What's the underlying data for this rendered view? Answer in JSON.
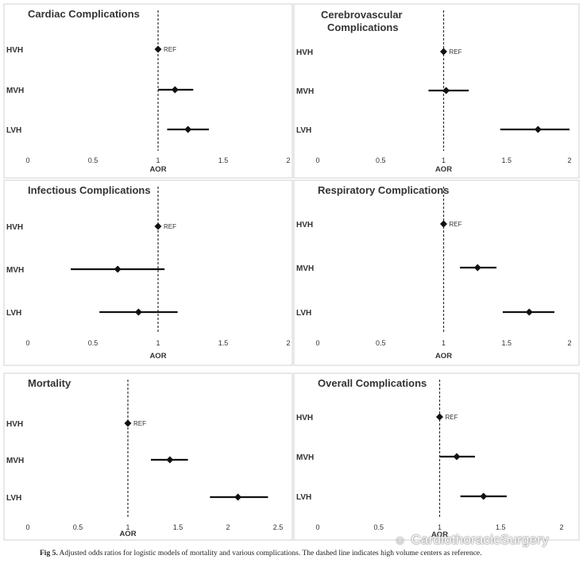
{
  "figure": {
    "caption_label": "Fig 5.",
    "caption_text": " Adjusted odds ratios for logistic models of mortality and various complications. The dashed line indicates high volume centers as reference.",
    "watermark": "CardiothoracicSurgery",
    "watermark_icon": "wechat-icon"
  },
  "chart_data": [
    {
      "type": "forest",
      "title": "Cardiac Complications",
      "xlabel": "AOR",
      "xlim": [
        0,
        2
      ],
      "xticks": [
        0,
        0.5,
        1,
        1.5,
        2
      ],
      "xtick_labels": [
        "0",
        "0.5",
        "1",
        "1.5",
        "2"
      ],
      "reference": 1,
      "rows": [
        {
          "label": "HVH",
          "value": 1.0,
          "low": 1.0,
          "high": 1.0,
          "ref_label": "REF"
        },
        {
          "label": "MVH",
          "value": 1.13,
          "low": 1.0,
          "high": 1.27
        },
        {
          "label": "LVH",
          "value": 1.23,
          "low": 1.07,
          "high": 1.39
        }
      ]
    },
    {
      "type": "forest",
      "title": "Cerebrovascular Complications",
      "xlabel": "AOR",
      "xlim": [
        0,
        2
      ],
      "xticks": [
        0,
        0.5,
        1,
        1.5,
        2
      ],
      "xtick_labels": [
        "0",
        "0.5",
        "1",
        "1.5",
        "2"
      ],
      "reference": 1,
      "rows": [
        {
          "label": "HVH",
          "value": 1.0,
          "low": 1.0,
          "high": 1.0,
          "ref_label": "REF"
        },
        {
          "label": "MVH",
          "value": 1.02,
          "low": 0.88,
          "high": 1.2
        },
        {
          "label": "LVH",
          "value": 1.75,
          "low": 1.45,
          "high": 2.0
        }
      ]
    },
    {
      "type": "forest",
      "title": "Infectious Complications",
      "xlabel": "AOR",
      "xlim": [
        0,
        2
      ],
      "xticks": [
        0,
        0.5,
        1,
        1.5,
        2
      ],
      "xtick_labels": [
        "0",
        "0.5",
        "1",
        "1.5",
        "2"
      ],
      "reference": 1,
      "rows": [
        {
          "label": "HVH",
          "value": 1.0,
          "low": 1.0,
          "high": 1.0,
          "ref_label": "REF"
        },
        {
          "label": "MVH",
          "value": 0.69,
          "low": 0.33,
          "high": 1.05
        },
        {
          "label": "LVH",
          "value": 0.85,
          "low": 0.55,
          "high": 1.15
        }
      ]
    },
    {
      "type": "forest",
      "title": "Respiratory Complications",
      "xlabel": "AOR",
      "xlim": [
        0,
        2
      ],
      "xticks": [
        0,
        0.5,
        1,
        1.5,
        2
      ],
      "xtick_labels": [
        "0",
        "0.5",
        "1",
        "1.5",
        "2"
      ],
      "reference": 1,
      "rows": [
        {
          "label": "HVH",
          "value": 1.0,
          "low": 1.0,
          "high": 1.0,
          "ref_label": "REF"
        },
        {
          "label": "MVH",
          "value": 1.27,
          "low": 1.13,
          "high": 1.42
        },
        {
          "label": "LVH",
          "value": 1.68,
          "low": 1.47,
          "high": 1.88
        }
      ]
    },
    {
      "type": "forest",
      "title": "Mortality",
      "xlabel": "AOR",
      "xlim": [
        0,
        2.5
      ],
      "xticks": [
        0,
        0.5,
        1,
        1.5,
        2,
        2.5
      ],
      "xtick_labels": [
        "0",
        "0.5",
        "1",
        "1.5",
        "2",
        "2.5"
      ],
      "reference": 1,
      "rows": [
        {
          "label": "HVH",
          "value": 1.0,
          "low": 1.0,
          "high": 1.0,
          "ref_label": "REF"
        },
        {
          "label": "MVH",
          "value": 1.42,
          "low": 1.23,
          "high": 1.6
        },
        {
          "label": "LVH",
          "value": 2.1,
          "low": 1.82,
          "high": 2.4
        }
      ]
    },
    {
      "type": "forest",
      "title": "Overall Complications",
      "xlabel": "AOR",
      "xlim": [
        0,
        2
      ],
      "xticks": [
        0,
        0.5,
        1,
        1.5,
        2
      ],
      "xtick_labels": [
        "0",
        "0.5",
        "1",
        "1.5",
        "2"
      ],
      "reference": 1,
      "rows": [
        {
          "label": "HVH",
          "value": 1.0,
          "low": 1.0,
          "high": 1.0,
          "ref_label": "REF"
        },
        {
          "label": "MVH",
          "value": 1.14,
          "low": 1.0,
          "high": 1.29
        },
        {
          "label": "LVH",
          "value": 1.36,
          "low": 1.17,
          "high": 1.55
        }
      ]
    }
  ]
}
